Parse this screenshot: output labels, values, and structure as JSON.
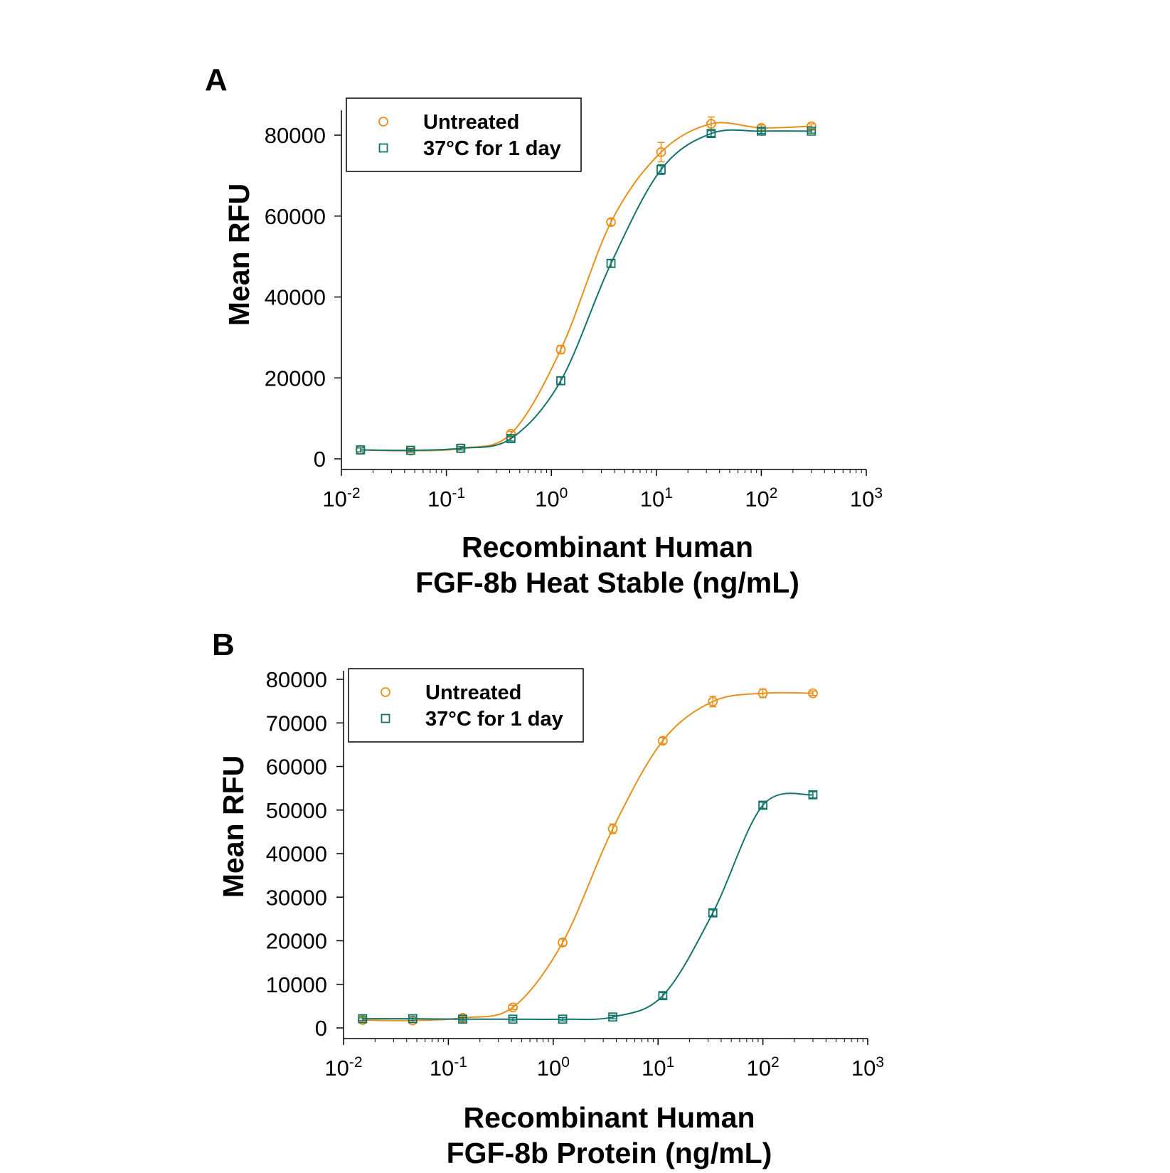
{
  "colors": {
    "untreated": "#E8901B",
    "heated": "#13746A",
    "axis": "#000000"
  },
  "chart_data": [
    {
      "type": "scatter",
      "panel": "A",
      "xlabel": [
        "Recombinant Human",
        "FGF-8b Heat Stable (ng/mL)"
      ],
      "ylabel": "Mean RFU",
      "xscale": "log",
      "xlim": [
        0.01,
        1000
      ],
      "ylim": [
        0,
        90000
      ],
      "yticks": [
        0,
        20000,
        40000,
        60000,
        80000
      ],
      "xticks": [
        0.01,
        0.1,
        1,
        10,
        100,
        1000
      ],
      "xtick_labels": [
        {
          "base": "10",
          "exp": "-2"
        },
        {
          "base": "10",
          "exp": "-1"
        },
        {
          "base": "10",
          "exp": "0"
        },
        {
          "base": "10",
          "exp": "1"
        },
        {
          "base": "10",
          "exp": "2"
        },
        {
          "base": "10",
          "exp": "3"
        }
      ],
      "legend_position": "top-left",
      "grid": false,
      "x": [
        0.0152,
        0.0457,
        0.137,
        0.412,
        1.23,
        3.7,
        11.1,
        33.3,
        100,
        300
      ],
      "series": [
        {
          "name": "Untreated",
          "marker": "circle",
          "values": [
            2200,
            2000,
            2600,
            6200,
            27000,
            58500,
            75800,
            82800,
            81800,
            82200
          ],
          "errors": [
            500,
            400,
            400,
            600,
            1000,
            800,
            2400,
            1700,
            700,
            600
          ]
        },
        {
          "name": "37°C for 1 day",
          "marker": "square",
          "values": [
            2200,
            2100,
            2600,
            5000,
            19300,
            48300,
            71500,
            80400,
            81000,
            81000
          ],
          "errors": [
            500,
            400,
            400,
            600,
            900,
            900,
            1200,
            700,
            600,
            500
          ]
        }
      ]
    },
    {
      "type": "scatter",
      "panel": "B",
      "xlabel": [
        "Recombinant Human",
        "FGF-8b Protein (ng/mL)"
      ],
      "ylabel": "Mean RFU",
      "xscale": "log",
      "xlim": [
        0.01,
        1000
      ],
      "ylim": [
        -3000,
        81000
      ],
      "yticks": [
        0,
        10000,
        20000,
        30000,
        40000,
        50000,
        60000,
        70000,
        80000
      ],
      "xticks": [
        0.01,
        0.1,
        1,
        10,
        100,
        1000
      ],
      "xtick_labels": [
        {
          "base": "10",
          "exp": "-2"
        },
        {
          "base": "10",
          "exp": "-1"
        },
        {
          "base": "10",
          "exp": "0"
        },
        {
          "base": "10",
          "exp": "1"
        },
        {
          "base": "10",
          "exp": "2"
        },
        {
          "base": "10",
          "exp": "3"
        }
      ],
      "legend_position": "top-left",
      "grid": false,
      "x": [
        0.0152,
        0.0457,
        0.137,
        0.412,
        1.23,
        3.7,
        11.1,
        33.3,
        100,
        300
      ],
      "series": [
        {
          "name": "Untreated",
          "marker": "circle",
          "values": [
            1800,
            1700,
            2300,
            4700,
            19600,
            45700,
            65900,
            74900,
            76800,
            76800
          ],
          "errors": [
            400,
            400,
            400,
            500,
            800,
            1100,
            700,
            1200,
            1000,
            500
          ]
        },
        {
          "name": "37°C for 1 day",
          "marker": "square",
          "values": [
            2100,
            2100,
            2000,
            2000,
            2000,
            2500,
            7400,
            26400,
            51100,
            53500
          ],
          "errors": [
            400,
            400,
            400,
            400,
            400,
            400,
            700,
            700,
            700,
            700
          ]
        }
      ]
    }
  ]
}
